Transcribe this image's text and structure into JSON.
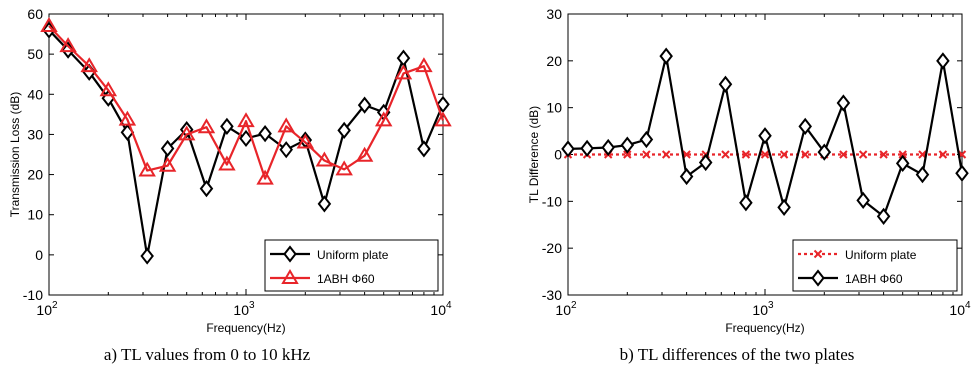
{
  "captions": {
    "left": "a) TL values from 0 to 10 kHz",
    "right": "b) TL differences of the two plates"
  },
  "chart_data": [
    {
      "type": "line",
      "xscale": "log",
      "xlim": [
        100,
        10000
      ],
      "ylim": [
        -10,
        60
      ],
      "xlabel": "Frequency(Hz)",
      "ylabel": "Transmission Loss (dB)",
      "x_ticks": [
        {
          "base": "10",
          "exp": "2"
        },
        {
          "base": "10",
          "exp": "3"
        },
        {
          "base": "10",
          "exp": "4"
        }
      ],
      "y_ticks": [
        "-10",
        "0",
        "10",
        "20",
        "30",
        "40",
        "50",
        "60"
      ],
      "grid": false,
      "legend_position": "bottom-right",
      "x": [
        100,
        125,
        160,
        200,
        250,
        315,
        400,
        500,
        630,
        800,
        1000,
        1250,
        1600,
        2000,
        2500,
        3150,
        4000,
        5000,
        6300,
        8000,
        10000
      ],
      "series": [
        {
          "name": "Uniform plate",
          "color": "#000000",
          "marker": "diamond",
          "values": [
            56,
            51,
            45.5,
            39,
            30.5,
            -0.3,
            26.5,
            31.2,
            16.5,
            32,
            29,
            30.2,
            26.2,
            28.6,
            12.7,
            31,
            37.3,
            35.5,
            49,
            26.4,
            37.5
          ]
        },
        {
          "name": "1ABH Φ60",
          "color": "#e8252a",
          "marker": "triangle",
          "values": [
            57,
            52,
            47,
            41,
            33.7,
            21,
            22.2,
            30,
            31.8,
            22.5,
            33.3,
            19,
            32,
            28,
            23.5,
            21.3,
            24.7,
            33.5,
            45.2,
            47,
            33.5
          ]
        }
      ]
    },
    {
      "type": "line",
      "xscale": "log",
      "xlim": [
        100,
        10000
      ],
      "ylim": [
        -30,
        30
      ],
      "xlabel": "Frequency(Hz)",
      "ylabel": "TL Difference (dB)",
      "x_ticks": [
        {
          "base": "10",
          "exp": "2"
        },
        {
          "base": "10",
          "exp": "3"
        },
        {
          "base": "10",
          "exp": "4"
        }
      ],
      "y_ticks": [
        "-30",
        "-20",
        "-10",
        "0",
        "10",
        "20",
        "30"
      ],
      "grid": false,
      "legend_position": "bottom-right",
      "x": [
        100,
        125,
        160,
        200,
        250,
        315,
        400,
        500,
        630,
        800,
        1000,
        1250,
        1600,
        2000,
        2500,
        3150,
        4000,
        5000,
        6300,
        8000,
        10000
      ],
      "series": [
        {
          "name": "Uniform plate",
          "color": "#e8252a",
          "marker": "x",
          "line_style": "dotted",
          "values": [
            0,
            0,
            0,
            0,
            0,
            0,
            0,
            0,
            0,
            0,
            0,
            0,
            0,
            0,
            0,
            0,
            0,
            0,
            0,
            0,
            0
          ]
        },
        {
          "name": "1ABH Φ60",
          "color": "#000000",
          "marker": "diamond",
          "values": [
            1.2,
            1.3,
            1.5,
            2,
            3.2,
            21,
            -4.7,
            -1.7,
            15,
            -10.3,
            4,
            -11.3,
            6,
            0.5,
            11,
            -9.8,
            -13.2,
            -1.9,
            -4.3,
            20,
            -4
          ]
        }
      ]
    }
  ]
}
